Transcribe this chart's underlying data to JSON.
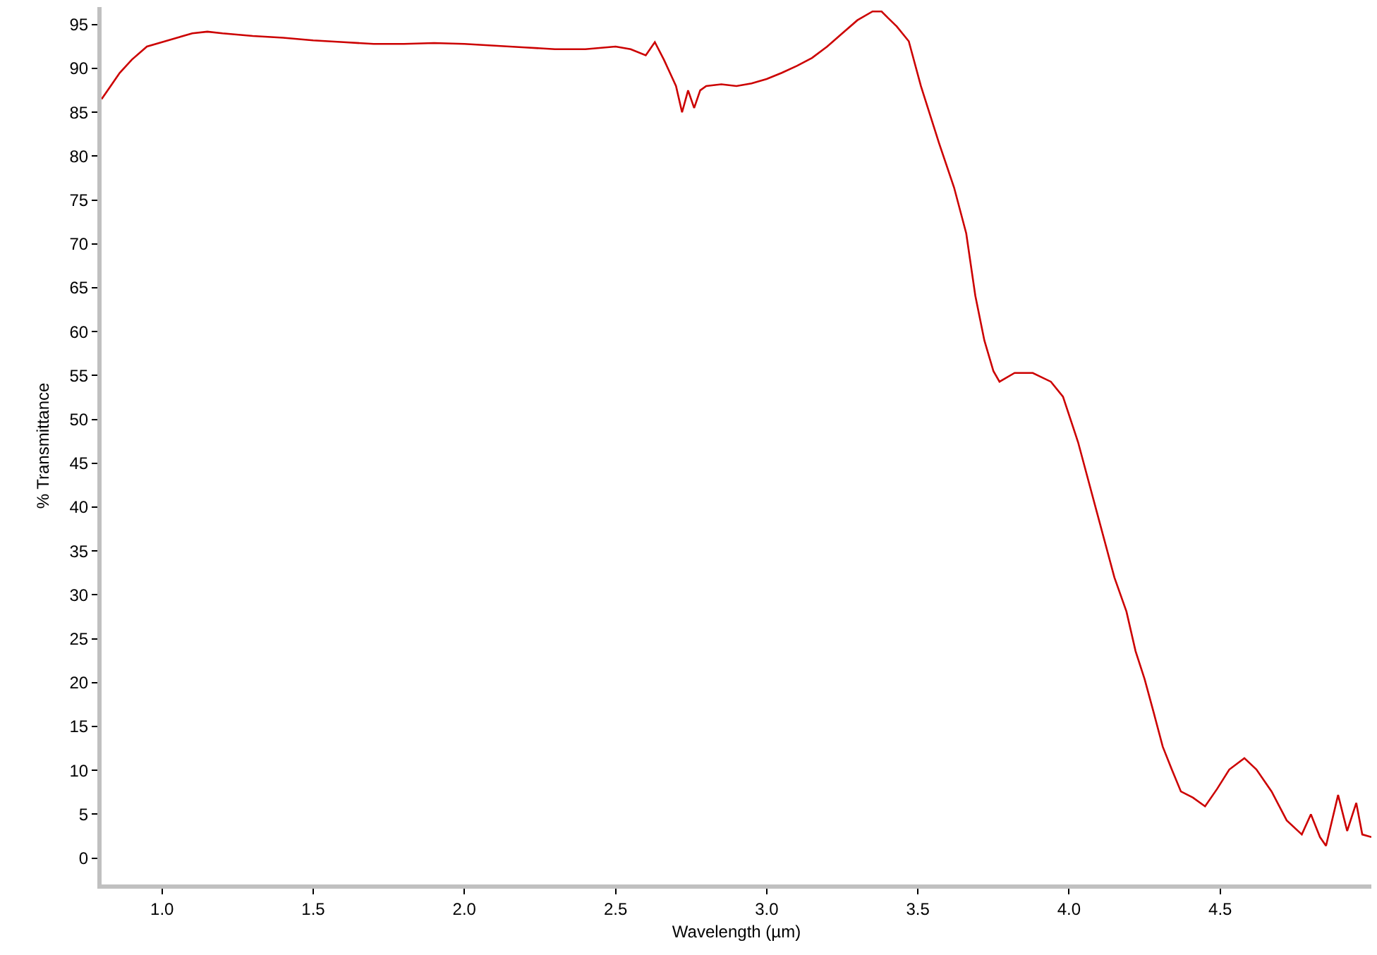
{
  "chart_data": {
    "type": "line",
    "xlabel": "Wavelength (µm)",
    "ylabel": "% Transmittance",
    "xlim": [
      0.8,
      5.0
    ],
    "xticks": [
      {
        "value": 1.0,
        "label": "1.0"
      },
      1.5,
      {
        "value": 2.0,
        "label": "2.0"
      },
      2.5,
      {
        "value": 3.0,
        "label": "3.0"
      },
      3.5,
      {
        "value": 4.0,
        "label": "4.0"
      },
      4.5
    ],
    "ylim": [
      -3,
      97
    ],
    "yticks": [
      0,
      5,
      10,
      15,
      20,
      25,
      30,
      35,
      40,
      45,
      50,
      55,
      60,
      65,
      70,
      75,
      80,
      85,
      90,
      95
    ],
    "marker": "none",
    "line_style": "solid",
    "series": [
      {
        "color": "#cc0000",
        "x": [
          0.8,
          0.83,
          0.86,
          0.9,
          0.95,
          1.0,
          1.05,
          1.1,
          1.15,
          1.2,
          1.3,
          1.4,
          1.5,
          1.6,
          1.7,
          1.8,
          1.9,
          2.0,
          2.1,
          2.2,
          2.3,
          2.4,
          2.5,
          2.55,
          2.6,
          2.63,
          2.66,
          2.68,
          2.7,
          2.72,
          2.74,
          2.76,
          2.78,
          2.8,
          2.85,
          2.9,
          2.95,
          3.0,
          3.05,
          3.1,
          3.15,
          3.2,
          3.25,
          3.3,
          3.35,
          3.38,
          3.4,
          3.43,
          3.47,
          3.51,
          3.57,
          3.62,
          3.66,
          3.69,
          3.72,
          3.75,
          3.77,
          3.82,
          3.88,
          3.94,
          3.98,
          4.03,
          4.09,
          4.15,
          4.19,
          4.22,
          4.25,
          4.28,
          4.31,
          4.34,
          4.37,
          4.41,
          4.45,
          4.49,
          4.53,
          4.58,
          4.62,
          4.67,
          4.72,
          4.77,
          4.8,
          4.83,
          4.85,
          4.89,
          4.92,
          4.95,
          4.97,
          5.0
        ],
        "values": [
          86.5,
          88,
          89.5,
          91,
          92.5,
          93,
          93.5,
          94,
          94.2,
          94,
          93.7,
          93.5,
          93.2,
          93,
          92.8,
          92.8,
          92.9,
          92.8,
          92.6,
          92.4,
          92.2,
          92.2,
          92.5,
          92.2,
          91.5,
          93,
          91,
          89.5,
          88,
          85,
          87.5,
          85.5,
          87.5,
          88,
          88.2,
          88,
          88.3,
          88.8,
          89.5,
          90.3,
          91.2,
          92.5,
          94,
          95.5,
          96.5,
          96.5,
          95.8,
          94.8,
          93.1,
          88,
          81.5,
          76.4,
          71.2,
          64.1,
          59,
          55.5,
          54.3,
          55.3,
          55.3,
          54.3,
          52.6,
          47.4,
          39.7,
          32,
          28.1,
          23.6,
          20.4,
          16.6,
          12.7,
          10.1,
          7.6,
          6.9,
          5.9,
          7.9,
          10.1,
          11.4,
          10.1,
          7.6,
          4.3,
          2.7,
          5,
          2.4,
          1.4,
          7.2,
          3.1,
          6.3,
          2.7,
          2.4
        ]
      }
    ]
  }
}
